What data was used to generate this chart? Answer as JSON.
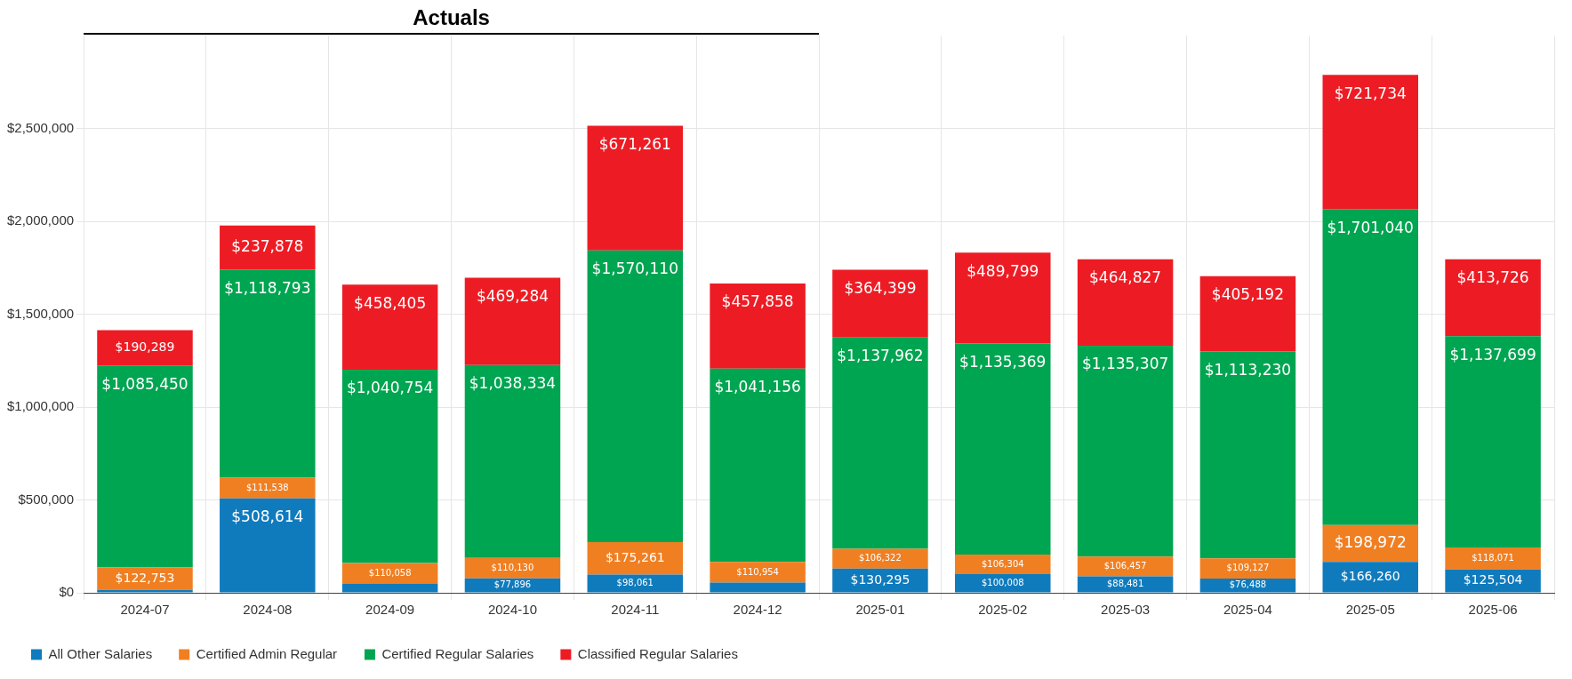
{
  "chart_data": {
    "type": "bar",
    "stacked": true,
    "annotations": [
      "Actuals"
    ],
    "categories": [
      "2024-07",
      "2024-08",
      "2024-09",
      "2024-10",
      "2024-11",
      "2024-12",
      "2025-01",
      "2025-02",
      "2025-03",
      "2025-04",
      "2025-05",
      "2025-06"
    ],
    "series": [
      {
        "name": "All Other Salaries",
        "color": "#0f7bbd",
        "values": [
          15000,
          508614,
          50000,
          77896,
          98061,
          55000,
          130295,
          100008,
          88481,
          76488,
          166260,
          125504
        ],
        "value_labels": [
          null,
          "$508,614",
          null,
          "$77,896",
          "$98,061",
          null,
          "$130,295",
          "$100,008",
          "$88,481",
          "$76,488",
          "$166,260",
          "$125,504"
        ]
      },
      {
        "name": "Certified Admin Regular",
        "color": "#f07f22",
        "values": [
          122753,
          111538,
          110058,
          110130,
          175261,
          110954,
          106322,
          106304,
          106457,
          109127,
          198972,
          118071
        ],
        "value_labels": [
          "$122,753",
          "$111,538",
          "$110,058",
          "$110,130",
          "$175,261",
          "$110,954",
          "$106,322",
          "$106,304",
          "$106,457",
          "$109,127",
          "$198,972",
          "$118,071"
        ]
      },
      {
        "name": "Certified Regular Salaries",
        "color": "#00a551",
        "values": [
          1085450,
          1118793,
          1040754,
          1038334,
          1570110,
          1041156,
          1137962,
          1135369,
          1135307,
          1113230,
          1701040,
          1137699
        ],
        "value_labels": [
          "$1,085,450",
          "$1,118,793",
          "$1,040,754",
          "$1,038,334",
          "$1,570,110",
          "$1,041,156",
          "$1,137,962",
          "$1,135,369",
          "$1,135,307",
          "$1,113,230",
          "$1,701,040",
          "$1,137,699"
        ]
      },
      {
        "name": "Classified Regular Salaries",
        "color": "#ed1c24",
        "values": [
          190289,
          237878,
          458405,
          469284,
          671261,
          457858,
          364399,
          489799,
          464827,
          405192,
          721734,
          413726
        ],
        "value_labels": [
          "$190,289",
          "$237,878",
          "$458,405",
          "$469,284",
          "$671,261",
          "$457,858",
          "$364,399",
          "$489,799",
          "$464,827",
          "$405,192",
          "$721,734",
          "$413,726"
        ]
      }
    ],
    "ylim": [
      0,
      3000000
    ],
    "yticks": [
      {
        "value": 0,
        "label": "$0"
      },
      {
        "value": 500000,
        "label": "$500,000"
      },
      {
        "value": 1000000,
        "label": "$1,000,000"
      },
      {
        "value": 1500000,
        "label": "$1,500,000"
      },
      {
        "value": 2000000,
        "label": "$2,000,000"
      },
      {
        "value": 2500000,
        "label": "$2,500,000"
      }
    ],
    "grid": true,
    "legend": "bottom left"
  }
}
